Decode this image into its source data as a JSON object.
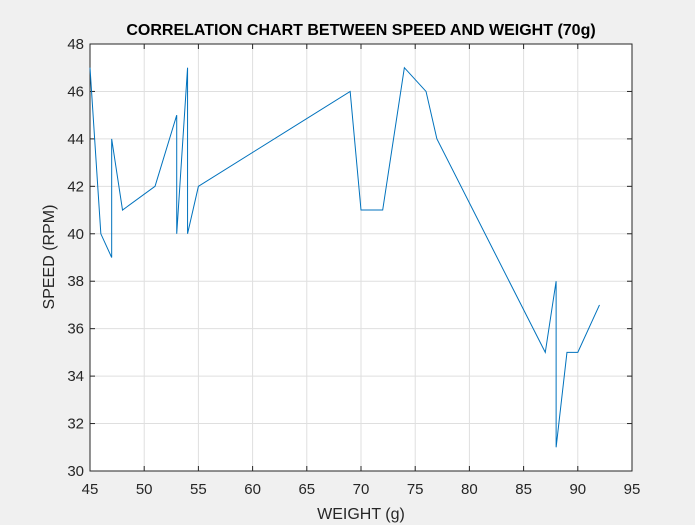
{
  "chart_data": {
    "type": "line",
    "title": "CORRELATION CHART BETWEEN SPEED AND WEIGHT (70g)",
    "xlabel": "WEIGHT (g)",
    "ylabel": "SPEED (RPM)",
    "xlim": [
      45,
      95
    ],
    "ylim": [
      30,
      48
    ],
    "xticks": [
      45,
      50,
      55,
      60,
      65,
      70,
      75,
      80,
      85,
      90,
      95
    ],
    "yticks": [
      30,
      32,
      34,
      36,
      38,
      40,
      42,
      44,
      46,
      48
    ],
    "grid": true,
    "legend": "none",
    "series": [
      {
        "color": "#0072bd",
        "x": [
          45,
          46,
          47,
          47,
          48,
          51,
          53,
          53,
          54,
          54,
          55,
          69,
          70,
          72,
          74,
          76,
          77,
          87,
          88,
          88,
          89,
          90,
          92
        ],
        "y": [
          47,
          40,
          39,
          44,
          41,
          42,
          45,
          40,
          47,
          40,
          42,
          46,
          41,
          41,
          47,
          46,
          44,
          35,
          38,
          31,
          35,
          35,
          37
        ]
      }
    ],
    "colors": {
      "figure_background": "#f0f0f0",
      "axes_background": "#ffffff",
      "grid": "#dfdfdf",
      "axis": "#262626"
    }
  }
}
